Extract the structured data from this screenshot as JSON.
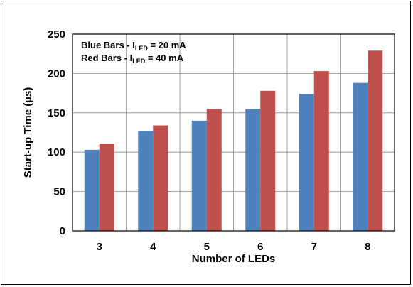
{
  "chart_data": {
    "type": "bar",
    "categories": [
      "3",
      "4",
      "5",
      "6",
      "7",
      "8"
    ],
    "series": [
      {
        "name": "Blue Bars",
        "values": [
          103,
          127,
          140,
          155,
          174,
          188
        ]
      },
      {
        "name": "Red Bars",
        "values": [
          111,
          134,
          155,
          178,
          203,
          229
        ]
      }
    ],
    "colors": [
      "#4f81bd",
      "#c0504d"
    ],
    "xlabel": "Number of LEDs",
    "ylabel": "Start-up Time (µs)",
    "ylim": [
      0,
      250
    ],
    "yticks": [
      "0",
      "50",
      "100",
      "150",
      "200",
      "250"
    ],
    "grid": true,
    "legend": {
      "placement": "top-left",
      "lines": [
        {
          "prefix": "Blue Bars - I",
          "subscript": "LED",
          "suffix": " = 20 mA"
        },
        {
          "prefix": "Red Bars - I",
          "subscript": "LED",
          "suffix": " = 40 mA"
        }
      ]
    }
  }
}
